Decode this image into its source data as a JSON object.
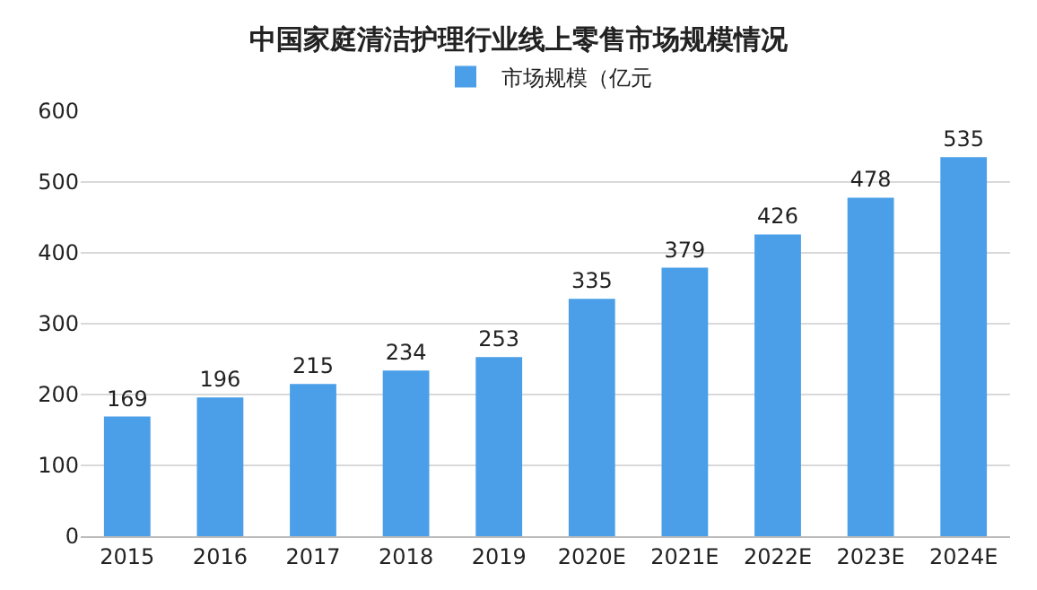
{
  "chart_data": {
    "type": "bar",
    "title": "中国家庭清洁护理行业线上零售市场规模情况",
    "categories": [
      "2015",
      "2016",
      "2017",
      "2018",
      "2019",
      "2020E",
      "2021E",
      "2022E",
      "2023E",
      "2024E"
    ],
    "series": [
      {
        "name": "市场规模（亿元",
        "color": "#4a9fe8",
        "values": [
          169,
          196,
          215,
          234,
          253,
          335,
          379,
          426,
          478,
          535
        ]
      }
    ],
    "ylim": [
      0,
      600
    ],
    "yticks": [
      0,
      100,
      200,
      300,
      400,
      500,
      600
    ],
    "grid": "y",
    "legend": "top",
    "data_labels": true
  }
}
